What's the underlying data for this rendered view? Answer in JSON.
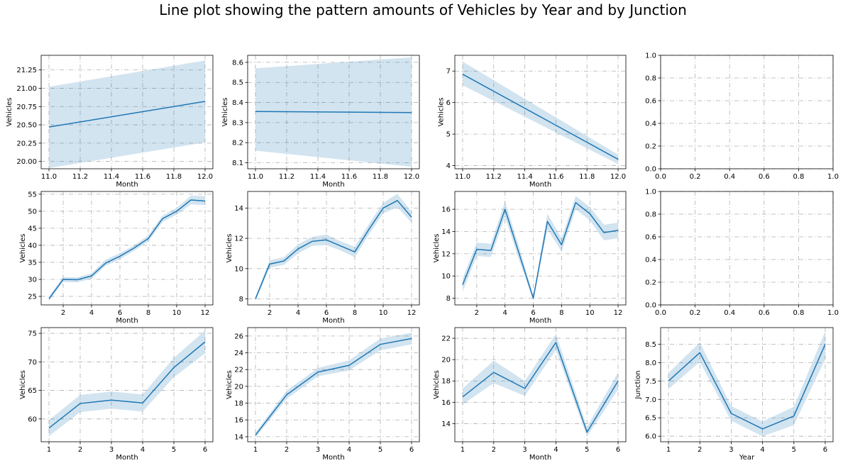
{
  "figure": {
    "title": "Line plot showing the pattern amounts of Vehicles by Year and by Junction"
  },
  "style": {
    "line_color": "#1f77b4",
    "band_color": "#1f77b4",
    "band_opacity": 0.2,
    "grid_color": "#b0b0b0"
  },
  "chart_data": [
    {
      "type": "line",
      "row": 0,
      "col": 0,
      "xlabel": "Month",
      "ylabel": "Vehicles",
      "xlim": [
        10.95,
        12.05
      ],
      "ylim": [
        19.9,
        21.45
      ],
      "xticks": [
        11.0,
        11.2,
        11.4,
        11.6,
        11.8,
        12.0
      ],
      "xtick_decimals": 1,
      "yticks": [
        20.0,
        20.25,
        20.5,
        20.75,
        21.0,
        21.25
      ],
      "ytick_decimals": 2,
      "x": [
        11,
        12
      ],
      "y": [
        20.47,
        20.82
      ],
      "ci_low": [
        19.91,
        20.26
      ],
      "ci_high": [
        21.02,
        21.38
      ]
    },
    {
      "type": "line",
      "row": 0,
      "col": 1,
      "xlabel": "Month",
      "ylabel": "Vehicles",
      "xlim": [
        10.95,
        12.05
      ],
      "ylim": [
        8.07,
        8.635
      ],
      "xticks": [
        11.0,
        11.2,
        11.4,
        11.6,
        11.8,
        12.0
      ],
      "xtick_decimals": 1,
      "yticks": [
        8.1,
        8.2,
        8.3,
        8.4,
        8.5,
        8.6
      ],
      "ytick_decimals": 1,
      "x": [
        11,
        12
      ],
      "y": [
        8.355,
        8.35
      ],
      "ci_low": [
        8.16,
        8.08
      ],
      "ci_high": [
        8.57,
        8.625
      ]
    },
    {
      "type": "line",
      "row": 0,
      "col": 2,
      "xlabel": "Month",
      "ylabel": "Vehicles",
      "xlim": [
        10.95,
        12.05
      ],
      "ylim": [
        3.9,
        7.5
      ],
      "xticks": [
        11.0,
        11.2,
        11.4,
        11.6,
        11.8,
        12.0
      ],
      "xtick_decimals": 1,
      "yticks": [
        4,
        5,
        6,
        7
      ],
      "ytick_decimals": 0,
      "x": [
        11,
        12
      ],
      "y": [
        6.9,
        4.2
      ],
      "ci_low": [
        6.55,
        4.05
      ],
      "ci_high": [
        7.3,
        4.35
      ]
    },
    {
      "type": "empty",
      "row": 0,
      "col": 3,
      "xlim": [
        0,
        1
      ],
      "ylim": [
        0,
        1
      ],
      "xticks": [
        0.0,
        0.2,
        0.4,
        0.6,
        0.8,
        1.0
      ],
      "xtick_decimals": 1,
      "yticks": [
        0.0,
        0.2,
        0.4,
        0.6,
        0.8,
        1.0
      ],
      "ytick_decimals": 1
    },
    {
      "type": "line",
      "row": 1,
      "col": 0,
      "xlabel": "Month",
      "ylabel": "Vehicles",
      "xlim": [
        0.45,
        12.55
      ],
      "ylim": [
        22.5,
        55.8
      ],
      "xticks": [
        2,
        4,
        6,
        8,
        10,
        12
      ],
      "xtick_decimals": 0,
      "yticks": [
        25,
        30,
        35,
        40,
        45,
        50,
        55
      ],
      "ytick_decimals": 0,
      "x": [
        1,
        2,
        3,
        4,
        5,
        6,
        7,
        8,
        9,
        10,
        11,
        12
      ],
      "y": [
        24.3,
        30.0,
        29.9,
        31.0,
        34.8,
        36.8,
        39.2,
        42.0,
        47.8,
        50.0,
        53.3,
        53.0
      ],
      "ci_low": [
        23.6,
        29.2,
        29.1,
        30.2,
        34.0,
        35.9,
        38.4,
        41.1,
        46.8,
        49.0,
        52.0,
        51.8
      ],
      "ci_high": [
        25.0,
        30.7,
        30.6,
        31.8,
        35.8,
        37.7,
        40.0,
        42.9,
        48.7,
        51.0,
        54.6,
        54.4
      ]
    },
    {
      "type": "line",
      "row": 1,
      "col": 1,
      "xlabel": "Month",
      "ylabel": "Vehicles",
      "xlim": [
        0.45,
        12.55
      ],
      "ylim": [
        7.6,
        15.1
      ],
      "xticks": [
        2,
        4,
        6,
        8,
        10,
        12
      ],
      "xtick_decimals": 0,
      "yticks": [
        8,
        10,
        12,
        14
      ],
      "ytick_decimals": 0,
      "x": [
        1,
        2,
        3,
        4,
        5,
        6,
        7,
        8,
        9,
        10,
        11,
        12
      ],
      "y": [
        8.0,
        10.3,
        10.5,
        11.3,
        11.8,
        11.9,
        11.5,
        11.1,
        12.6,
        14.0,
        14.5,
        13.4
      ],
      "ci_low": [
        7.85,
        10.05,
        10.25,
        11.0,
        11.5,
        11.55,
        11.2,
        10.75,
        12.25,
        13.65,
        14.05,
        13.05
      ],
      "ci_high": [
        8.15,
        10.55,
        10.75,
        11.6,
        12.1,
        12.25,
        11.8,
        11.45,
        12.95,
        14.35,
        14.95,
        13.75
      ]
    },
    {
      "type": "line",
      "row": 1,
      "col": 2,
      "xlabel": "Month",
      "ylabel": "Vehicles",
      "xlim": [
        0.45,
        12.55
      ],
      "ylim": [
        7.4,
        17.6
      ],
      "xticks": [
        2,
        4,
        6,
        8,
        10,
        12
      ],
      "xtick_decimals": 0,
      "yticks": [
        8,
        10,
        12,
        14,
        16
      ],
      "ytick_decimals": 0,
      "x": [
        1,
        2,
        3,
        4,
        5,
        6,
        7,
        8,
        9,
        10,
        11,
        12
      ],
      "y": [
        9.2,
        12.4,
        12.3,
        16.0,
        12.0,
        8.0,
        14.9,
        12.8,
        16.6,
        15.6,
        13.9,
        14.1
      ],
      "ci_low": [
        8.6,
        11.8,
        11.7,
        15.3,
        11.4,
        7.8,
        14.2,
        12.2,
        16.0,
        15.0,
        13.2,
        13.4
      ],
      "ci_high": [
        9.8,
        13.0,
        12.9,
        16.7,
        12.6,
        8.2,
        15.6,
        13.4,
        17.2,
        16.2,
        14.6,
        14.8
      ]
    },
    {
      "type": "empty",
      "row": 1,
      "col": 3,
      "xlim": [
        0,
        1
      ],
      "ylim": [
        0,
        1
      ],
      "xticks": [
        0.0,
        0.2,
        0.4,
        0.6,
        0.8,
        1.0
      ],
      "xtick_decimals": 1,
      "yticks": [
        0.0,
        0.2,
        0.4,
        0.6,
        0.8,
        1.0
      ],
      "ytick_decimals": 1
    },
    {
      "type": "line",
      "row": 2,
      "col": 0,
      "xlabel": "Month",
      "ylabel": "Vehicles",
      "xlim": [
        0.75,
        6.25
      ],
      "ylim": [
        56.0,
        76.0
      ],
      "xticks": [
        1,
        2,
        3,
        4,
        5,
        6
      ],
      "xtick_decimals": 0,
      "yticks": [
        60,
        65,
        70,
        75
      ],
      "ytick_decimals": 0,
      "x": [
        1,
        2,
        3,
        4,
        5,
        6
      ],
      "y": [
        58.4,
        62.7,
        63.3,
        62.8,
        69.0,
        73.5
      ],
      "ci_low": [
        57.0,
        61.2,
        61.8,
        61.3,
        67.3,
        71.5
      ],
      "ci_high": [
        59.8,
        64.2,
        64.8,
        64.3,
        70.7,
        75.5
      ]
    },
    {
      "type": "line",
      "row": 2,
      "col": 1,
      "xlabel": "Month",
      "ylabel": "Vehicles",
      "xlim": [
        0.75,
        6.25
      ],
      "ylim": [
        13.4,
        27.0
      ],
      "xticks": [
        1,
        2,
        3,
        4,
        5,
        6
      ],
      "xtick_decimals": 0,
      "yticks": [
        14,
        16,
        18,
        20,
        22,
        24,
        26
      ],
      "ytick_decimals": 0,
      "x": [
        1,
        2,
        3,
        4,
        5,
        6
      ],
      "y": [
        14.2,
        19.0,
        21.7,
        22.5,
        25.0,
        25.7
      ],
      "ci_low": [
        13.9,
        18.5,
        21.2,
        21.9,
        24.3,
        25.0
      ],
      "ci_high": [
        14.5,
        19.5,
        22.2,
        23.1,
        25.7,
        26.4
      ]
    },
    {
      "type": "line",
      "row": 2,
      "col": 2,
      "xlabel": "Month",
      "ylabel": "Vehicles",
      "xlim": [
        0.75,
        6.25
      ],
      "ylim": [
        12.3,
        23.0
      ],
      "xticks": [
        1,
        2,
        3,
        4,
        5,
        6
      ],
      "xtick_decimals": 0,
      "yticks": [
        14,
        16,
        18,
        20,
        22
      ],
      "ytick_decimals": 0,
      "x": [
        1,
        2,
        3,
        4,
        5,
        6
      ],
      "y": [
        16.5,
        18.8,
        17.3,
        21.6,
        13.2,
        18.0
      ],
      "ci_low": [
        15.8,
        17.8,
        16.6,
        20.9,
        12.8,
        17.2
      ],
      "ci_high": [
        17.3,
        19.9,
        18.0,
        22.4,
        13.7,
        18.8
      ]
    },
    {
      "type": "line",
      "row": 2,
      "col": 3,
      "xlabel": "Year",
      "ylabel": "Junction",
      "xlim": [
        0.75,
        6.25
      ],
      "ylim": [
        5.85,
        8.95
      ],
      "xticks": [
        1,
        2,
        3,
        4,
        5,
        6
      ],
      "xtick_decimals": 0,
      "yticks": [
        6.0,
        6.5,
        7.0,
        7.5,
        8.0,
        8.5
      ],
      "ytick_decimals": 1,
      "x": [
        1,
        2,
        3,
        4,
        5,
        6
      ],
      "y": [
        7.5,
        8.27,
        6.62,
        6.2,
        6.55,
        8.5
      ],
      "ci_low": [
        7.28,
        8.02,
        6.42,
        6.0,
        6.3,
        8.1
      ],
      "ci_high": [
        7.72,
        8.55,
        6.82,
        6.4,
        6.8,
        8.85
      ]
    }
  ]
}
